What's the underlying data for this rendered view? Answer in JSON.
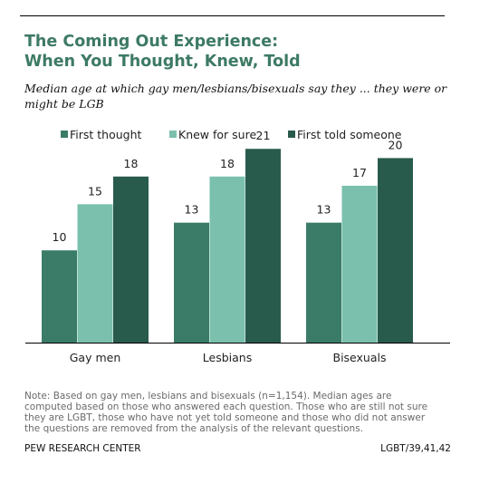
{
  "title_lines": [
    "The Coming Out Experience:",
    "When You Thought, Knew, Told"
  ],
  "subtitle": "Median age at which gay men/lesbians/bisexuals say they ... they were or might be LGB",
  "note_lines": [
    "Note: Based on gay men, lesbians and bisexuals (n=1,154). Median ages are",
    "computed based on those who answered each question. Those who are still not sure",
    "they are LGBT, those who have not yet told someone and those who did not answer",
    "the questions are removed from the analysis of the relevant questions."
  ],
  "source": "PEW RESEARCH CENTER",
  "code": "LGBT/39,41,42",
  "chart_data": {
    "type": "bar",
    "categories": [
      "Gay men",
      "Lesbians",
      "Bisexuals"
    ],
    "series": [
      {
        "name": "First thought",
        "color": "#3a7c67",
        "values": [
          10,
          13,
          13
        ]
      },
      {
        "name": "Knew for sure",
        "color": "#7ac0ad",
        "values": [
          15,
          18,
          17
        ]
      },
      {
        "name": "First told someone",
        "color": "#295b4d",
        "values": [
          18,
          21,
          20
        ]
      }
    ],
    "ylim": [
      0,
      22.3
    ],
    "grid": false,
    "legend_position": "top",
    "data_labels": true
  }
}
